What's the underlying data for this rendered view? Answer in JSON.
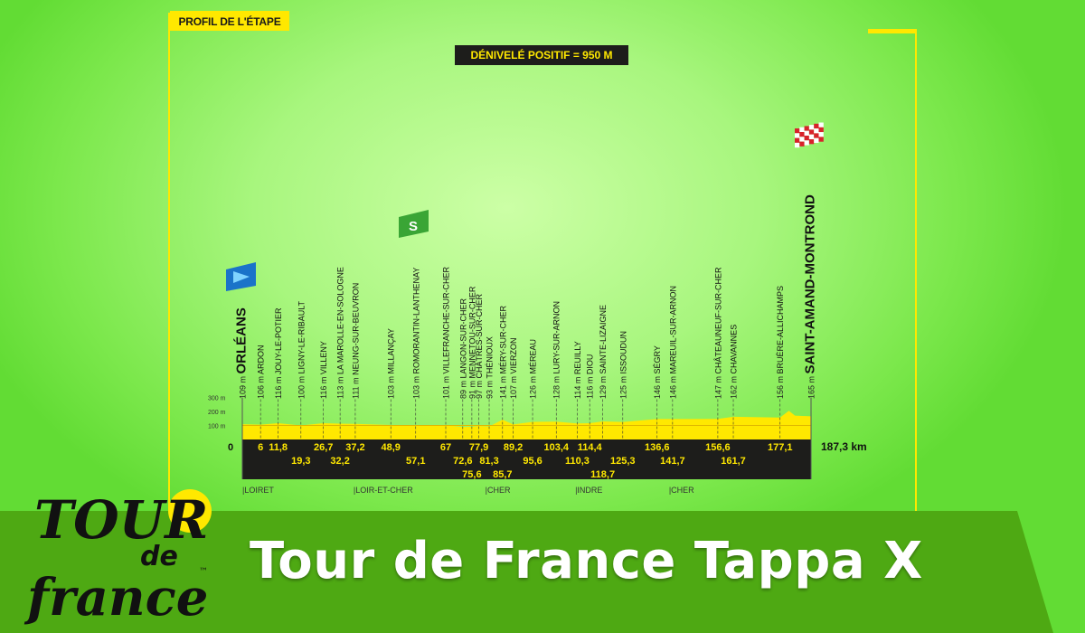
{
  "header": {
    "profile_label": "PROFIL DE L'ÉTAPE",
    "elevation_gain": "DÉNIVELÉ POSITIF = 950 M"
  },
  "banner": {
    "title": "Tour de France Tappa X"
  },
  "logo": {
    "text": "TOUR de france",
    "trademark": "™"
  },
  "colors": {
    "background": "#9cf070",
    "profile_fill": "#ffe800",
    "band": "#1d1d1b",
    "banner": "#4ea913",
    "start_flag": "#1a73c9",
    "sprint": "#3aa535",
    "finish_flag": "#d8222a"
  },
  "chart_data": {
    "type": "area",
    "xlabel": "",
    "ylabel": "",
    "x_unit": "km",
    "xlim": [
      0,
      187.3
    ],
    "ylim": [
      0,
      300
    ],
    "y_ticks": [
      "100 m",
      "200 m",
      "300 m"
    ],
    "origin_label": "0",
    "total_distance": "187,3 km",
    "waypoints": [
      {
        "km": 0,
        "km_label": "",
        "alt": 109,
        "alt_label": "109 m",
        "name": "ORLÉANS",
        "type": "start"
      },
      {
        "km": 6,
        "km_label": "6",
        "alt": 106,
        "alt_label": "106 m",
        "name": "ARDON"
      },
      {
        "km": 11.8,
        "km_label": "11,8",
        "alt": 116,
        "alt_label": "116 m",
        "name": "JOUY-LE-POTIER"
      },
      {
        "km": 19.3,
        "km_label": "19,3",
        "alt": 100,
        "alt_label": "100 m",
        "name": "LIGNY-LE-RIBAULT"
      },
      {
        "km": 26.7,
        "km_label": "26,7",
        "alt": 116,
        "alt_label": "116 m",
        "name": "VILLENY"
      },
      {
        "km": 32.2,
        "km_label": "32,2",
        "alt": 113,
        "alt_label": "113 m",
        "name": "LA MAROLLE-EN-SOLOGNE"
      },
      {
        "km": 37.2,
        "km_label": "37,2",
        "alt": 111,
        "alt_label": "111 m",
        "name": "NEUNG-SUR-BEUVRON"
      },
      {
        "km": 48.9,
        "km_label": "48,9",
        "alt": 103,
        "alt_label": "103 m",
        "name": "MILLANÇAY"
      },
      {
        "km": 57.1,
        "km_label": "57,1",
        "alt": 103,
        "alt_label": "103 m",
        "name": "ROMORANTIN-LANTHENAY",
        "type": "sprint"
      },
      {
        "km": 67,
        "km_label": "67",
        "alt": 101,
        "alt_label": "101 m",
        "name": "VILLEFRANCHE-SUR-CHER"
      },
      {
        "km": 72.6,
        "km_label": "72,6",
        "alt": 89,
        "alt_label": "89 m",
        "name": "LANGON-SUR-CHER"
      },
      {
        "km": 75.6,
        "km_label": "75,6",
        "alt": 91,
        "alt_label": "91 m",
        "name": "MENNETOU-SUR-CHER"
      },
      {
        "km": 77.9,
        "km_label": "77,9",
        "alt": 97,
        "alt_label": "97 m",
        "name": "CHÂTRES-SUR-CHER"
      },
      {
        "km": 81.3,
        "km_label": "81,3",
        "alt": 93,
        "alt_label": "93 m",
        "name": "THÉNIOUX"
      },
      {
        "km": 85.7,
        "km_label": "85,7",
        "alt": 141,
        "alt_label": "141 m",
        "name": "MÉRY-SUR-CHER"
      },
      {
        "km": 89.2,
        "km_label": "89,2",
        "alt": 107,
        "alt_label": "107 m",
        "name": "VIERZON"
      },
      {
        "km": 95.6,
        "km_label": "95,6",
        "alt": 126,
        "alt_label": "126 m",
        "name": "MÉREAU"
      },
      {
        "km": 103.4,
        "km_label": "103,4",
        "alt": 128,
        "alt_label": "128 m",
        "name": "LURY-SUR-ARNON"
      },
      {
        "km": 110.3,
        "km_label": "110,3",
        "alt": 114,
        "alt_label": "114 m",
        "name": "REUILLY"
      },
      {
        "km": 114.4,
        "km_label": "114,4",
        "alt": 116,
        "alt_label": "116 m",
        "name": "DIOU"
      },
      {
        "km": 118.7,
        "km_label": "118,7",
        "alt": 129,
        "alt_label": "129 m",
        "name": "SAINTE-LIZAIGNE"
      },
      {
        "km": 125.3,
        "km_label": "125,3",
        "alt": 125,
        "alt_label": "125 m",
        "name": "ISSOUDUN"
      },
      {
        "km": 136.6,
        "km_label": "136,6",
        "alt": 146,
        "alt_label": "146 m",
        "name": "SÉGRY"
      },
      {
        "km": 141.7,
        "km_label": "141,7",
        "alt": 146,
        "alt_label": "146 m",
        "name": "MAREUIL-SUR-ARNON"
      },
      {
        "km": 156.6,
        "km_label": "156,6",
        "alt": 147,
        "alt_label": "147 m",
        "name": "CHÂTEAUNEUF-SUR-CHER"
      },
      {
        "km": 161.7,
        "km_label": "161,7",
        "alt": 162,
        "alt_label": "162 m",
        "name": "CHAVANNES"
      },
      {
        "km": 177.1,
        "km_label": "177,1",
        "alt": 156,
        "alt_label": "156 m",
        "name": "BRUÈRE-ALLICHAMPS"
      },
      {
        "km": 187.3,
        "km_label": "",
        "alt": 165,
        "alt_label": "165 m",
        "name": "SAINT-AMAND-MONTROND",
        "type": "finish"
      }
    ],
    "profile_extra": [
      [
        180,
        205
      ],
      [
        182,
        170
      ]
    ],
    "regions": [
      {
        "km": 0,
        "name": "LOIRET"
      },
      {
        "km": 36.6,
        "name": "LOIR-ET-CHER"
      },
      {
        "km": 80,
        "name": "CHER"
      },
      {
        "km": 109.6,
        "name": "INDRE"
      },
      {
        "km": 140.5,
        "name": "CHER"
      }
    ]
  }
}
